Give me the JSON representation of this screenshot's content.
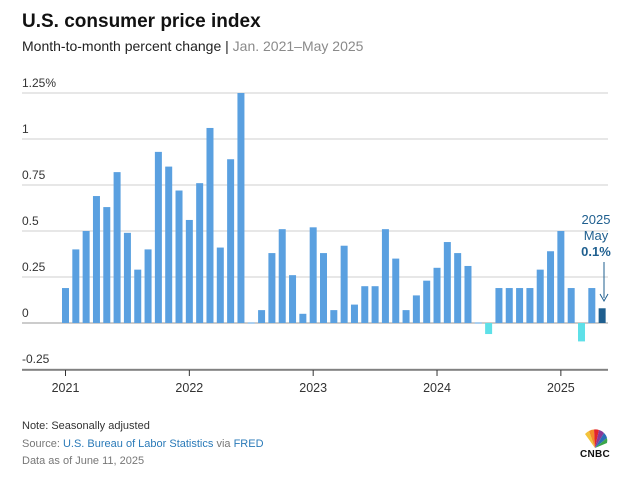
{
  "header": {
    "title": "U.S. consumer price index",
    "subtitle_main": "Month-to-month percent change | ",
    "subtitle_range": "Jan. 2021–May 2025"
  },
  "annotation": {
    "year": "2025",
    "month": "May",
    "value_label": "0.1%",
    "color": "#1f5f8f"
  },
  "footer": {
    "note": "Note: Seasonally adjusted",
    "source_prefix": "Source: ",
    "source_bls": "U.S. Bureau of Labor Statistics",
    "source_via": " via ",
    "source_fred": "FRED",
    "as_of": "Data as of June 11, 2025"
  },
  "logo": {
    "text": "CNBC"
  },
  "colors": {
    "bar": "#5aa0e0",
    "negative_bar": "#5ee0e8",
    "highlight_bar": "#1f5f8f",
    "grid": "#cfcfcf",
    "zero_line": "#999999"
  },
  "chart_data": {
    "type": "bar",
    "title": "U.S. consumer price index",
    "subtitle": "Month-to-month percent change | Jan. 2021–May 2025",
    "ylim": [
      -0.25,
      1.25
    ],
    "yticks": [
      -0.25,
      0,
      0.25,
      0.5,
      0.75,
      1,
      1.25
    ],
    "ytick_labels": [
      "-0.25",
      "0",
      "0.25",
      "0.5",
      "0.75",
      "1",
      "1.25%"
    ],
    "grid": true,
    "x_tick_labels": [
      {
        "label": "2021",
        "index": 0
      },
      {
        "label": "2022",
        "index": 12
      },
      {
        "label": "2023",
        "index": 24
      },
      {
        "label": "2024",
        "index": 36
      },
      {
        "label": "2025",
        "index": 48
      }
    ],
    "categories": [
      "2021-01",
      "2021-02",
      "2021-03",
      "2021-04",
      "2021-05",
      "2021-06",
      "2021-07",
      "2021-08",
      "2021-09",
      "2021-10",
      "2021-11",
      "2021-12",
      "2022-01",
      "2022-02",
      "2022-03",
      "2022-04",
      "2022-05",
      "2022-06",
      "2022-07",
      "2022-08",
      "2022-09",
      "2022-10",
      "2022-11",
      "2022-12",
      "2023-01",
      "2023-02",
      "2023-03",
      "2023-04",
      "2023-05",
      "2023-06",
      "2023-07",
      "2023-08",
      "2023-09",
      "2023-10",
      "2023-11",
      "2023-12",
      "2024-01",
      "2024-02",
      "2024-03",
      "2024-04",
      "2024-05",
      "2024-06",
      "2024-07",
      "2024-08",
      "2024-09",
      "2024-10",
      "2024-11",
      "2024-12",
      "2025-01",
      "2025-02",
      "2025-03",
      "2025-04",
      "2025-05"
    ],
    "values": [
      0.19,
      0.4,
      0.5,
      0.69,
      0.63,
      0.82,
      0.49,
      0.29,
      0.4,
      0.93,
      0.85,
      0.72,
      0.56,
      0.76,
      1.06,
      0.41,
      0.89,
      1.25,
      0.0,
      0.07,
      0.38,
      0.51,
      0.26,
      0.05,
      0.52,
      0.38,
      0.07,
      0.42,
      0.1,
      0.2,
      0.2,
      0.51,
      0.35,
      0.07,
      0.15,
      0.23,
      0.3,
      0.44,
      0.38,
      0.31,
      0.0,
      -0.06,
      0.19,
      0.19,
      0.19,
      0.19,
      0.29,
      0.39,
      0.5,
      0.19,
      -0.1,
      0.19,
      0.08
    ],
    "highlight_index": 52
  }
}
